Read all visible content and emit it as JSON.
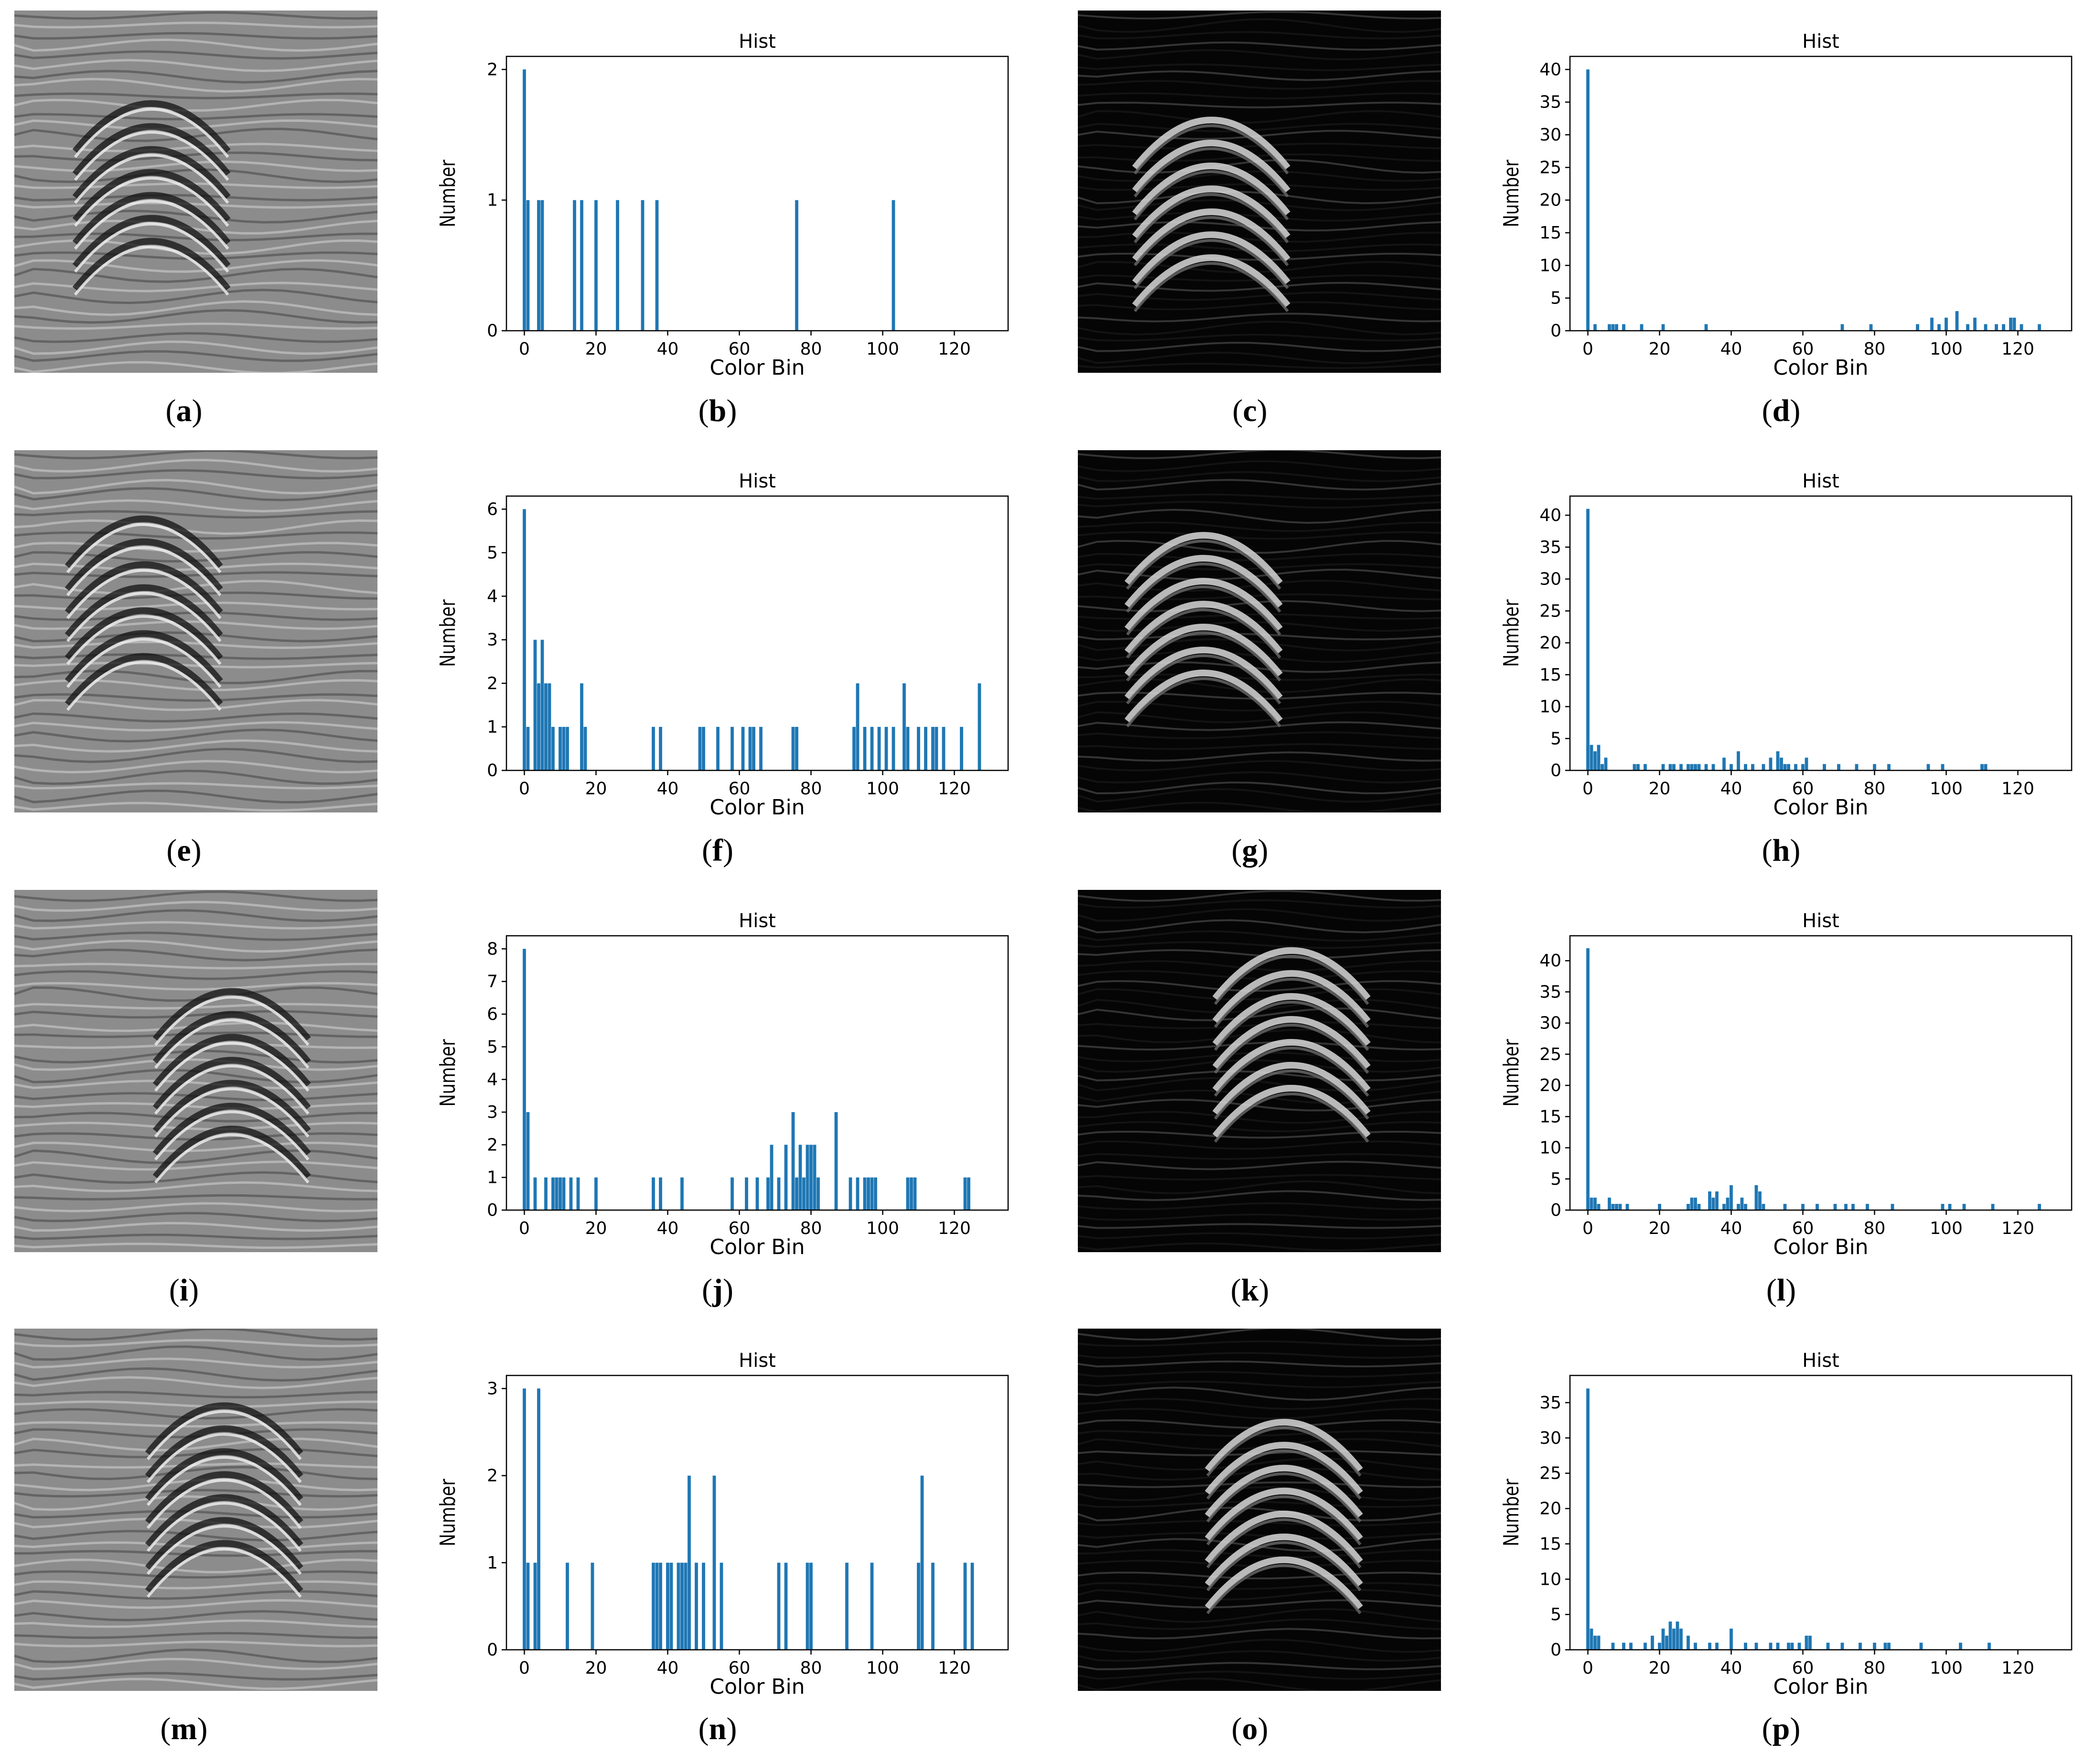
{
  "colors": {
    "bar": "#1f77b4",
    "axis": "#000000",
    "text": "#000000"
  },
  "hist_title": "Hist",
  "xlabel": "Color Bin",
  "ylabel": "Number",
  "xticks": [
    "0",
    "20",
    "40",
    "60",
    "80",
    "100",
    "120"
  ],
  "captions": {
    "a": [
      "(",
      "a",
      ")"
    ],
    "b": [
      "(",
      "b",
      ")"
    ],
    "c": [
      "(",
      "c",
      ")"
    ],
    "d": [
      "(",
      "d",
      ")"
    ],
    "e": [
      "(",
      "e",
      ")"
    ],
    "f": [
      "(",
      "f",
      ")"
    ],
    "g": [
      "(",
      "g",
      ")"
    ],
    "h": [
      "(",
      "h",
      ")"
    ],
    "i": [
      "(",
      "i",
      ")"
    ],
    "j": [
      "(",
      "j",
      ")"
    ],
    "k": [
      "(",
      "k",
      ")"
    ],
    "l": [
      "(",
      "l",
      ")"
    ],
    "m": [
      "(",
      "m",
      ")"
    ],
    "n": [
      "(",
      "n",
      ")"
    ],
    "o": [
      "(",
      "o",
      ")"
    ],
    "p": [
      "(",
      "p",
      ")"
    ]
  },
  "images": [
    {
      "id": "a",
      "kind": "gray"
    },
    {
      "id": "c",
      "kind": "dark"
    },
    {
      "id": "e",
      "kind": "gray"
    },
    {
      "id": "g",
      "kind": "dark"
    },
    {
      "id": "i",
      "kind": "gray"
    },
    {
      "id": "k",
      "kind": "dark"
    },
    {
      "id": "m",
      "kind": "gray"
    },
    {
      "id": "o",
      "kind": "dark"
    }
  ],
  "chart_data": [
    {
      "id": "b",
      "type": "bar",
      "title": "Hist",
      "xlabel": "Color Bin",
      "ylabel": "Number",
      "xlim": [
        -5,
        135
      ],
      "ylim": [
        0,
        2.1
      ],
      "yticks": [
        0,
        1,
        2
      ],
      "x": [
        0,
        1,
        4,
        5,
        14,
        16,
        20,
        26,
        33,
        37,
        76,
        103
      ],
      "values": [
        2,
        1,
        1,
        1,
        1,
        1,
        1,
        1,
        1,
        1,
        1,
        1
      ]
    },
    {
      "id": "d",
      "type": "bar",
      "title": "Hist",
      "xlabel": "Color Bin",
      "ylabel": "Number",
      "xlim": [
        -5,
        135
      ],
      "ylim": [
        0,
        42
      ],
      "yticks": [
        0,
        5,
        10,
        15,
        20,
        25,
        30,
        35,
        40
      ],
      "x": [
        0,
        2,
        6,
        7,
        8,
        10,
        15,
        21,
        33,
        71,
        79,
        92,
        96,
        98,
        100,
        103,
        106,
        108,
        111,
        114,
        116,
        118,
        119,
        121,
        126
      ],
      "values": [
        40,
        1,
        1,
        1,
        1,
        1,
        1,
        1,
        1,
        1,
        1,
        1,
        2,
        1,
        2,
        3,
        1,
        2,
        1,
        1,
        1,
        2,
        2,
        1,
        1
      ]
    },
    {
      "id": "f",
      "type": "bar",
      "title": "Hist",
      "xlabel": "Color Bin",
      "ylabel": "Number",
      "xlim": [
        -5,
        135
      ],
      "ylim": [
        0,
        6.3
      ],
      "yticks": [
        0,
        1,
        2,
        3,
        4,
        5,
        6
      ],
      "x": [
        0,
        1,
        3,
        4,
        5,
        6,
        7,
        8,
        10,
        11,
        12,
        16,
        17,
        36,
        38,
        49,
        50,
        54,
        58,
        61,
        63,
        64,
        66,
        75,
        76,
        92,
        93,
        95,
        97,
        99,
        101,
        103,
        106,
        107,
        110,
        112,
        114,
        115,
        117,
        122,
        127
      ],
      "values": [
        6,
        1,
        3,
        2,
        3,
        2,
        2,
        1,
        1,
        1,
        1,
        2,
        1,
        1,
        1,
        1,
        1,
        1,
        1,
        1,
        1,
        1,
        1,
        1,
        1,
        1,
        2,
        1,
        1,
        1,
        1,
        1,
        2,
        1,
        1,
        1,
        1,
        1,
        1,
        1,
        2
      ]
    },
    {
      "id": "h",
      "type": "bar",
      "title": "Hist",
      "xlabel": "Color Bin",
      "ylabel": "Number",
      "xlim": [
        -5,
        135
      ],
      "ylim": [
        0,
        43
      ],
      "yticks": [
        0,
        5,
        10,
        15,
        20,
        25,
        30,
        35,
        40
      ],
      "x": [
        0,
        1,
        2,
        3,
        4,
        5,
        13,
        14,
        16,
        21,
        23,
        24,
        26,
        28,
        29,
        30,
        31,
        33,
        35,
        38,
        40,
        42,
        44,
        46,
        49,
        51,
        53,
        54,
        55,
        56,
        58,
        60,
        61,
        66,
        70,
        75,
        80,
        84,
        95,
        99,
        110,
        111
      ],
      "values": [
        41,
        4,
        3,
        4,
        1,
        2,
        1,
        1,
        1,
        1,
        1,
        1,
        1,
        1,
        1,
        1,
        1,
        1,
        1,
        2,
        1,
        3,
        1,
        1,
        1,
        2,
        3,
        2,
        1,
        1,
        1,
        1,
        2,
        1,
        1,
        1,
        1,
        1,
        1,
        1,
        1,
        1
      ]
    },
    {
      "id": "j",
      "type": "bar",
      "title": "Hist",
      "xlabel": "Color Bin",
      "ylabel": "Number",
      "xlim": [
        -5,
        135
      ],
      "ylim": [
        0,
        8.4
      ],
      "yticks": [
        0,
        1,
        2,
        3,
        4,
        5,
        6,
        7,
        8
      ],
      "x": [
        0,
        1,
        3,
        6,
        8,
        9,
        10,
        11,
        13,
        15,
        20,
        36,
        38,
        44,
        58,
        62,
        65,
        68,
        69,
        71,
        73,
        75,
        76,
        77,
        78,
        79,
        80,
        81,
        82,
        87,
        91,
        93,
        95,
        96,
        97,
        98,
        107,
        108,
        109,
        123,
        124
      ],
      "values": [
        8,
        3,
        1,
        1,
        1,
        1,
        1,
        1,
        1,
        1,
        1,
        1,
        1,
        1,
        1,
        1,
        1,
        1,
        2,
        1,
        2,
        3,
        1,
        2,
        1,
        2,
        2,
        2,
        1,
        3,
        1,
        1,
        1,
        1,
        1,
        1,
        1,
        1,
        1,
        1,
        1
      ]
    },
    {
      "id": "l",
      "type": "bar",
      "title": "Hist",
      "xlabel": "Color Bin",
      "ylabel": "Number",
      "xlim": [
        -5,
        135
      ],
      "ylim": [
        0,
        44
      ],
      "yticks": [
        0,
        5,
        10,
        15,
        20,
        25,
        30,
        35,
        40
      ],
      "x": [
        0,
        1,
        2,
        3,
        6,
        7,
        8,
        9,
        11,
        20,
        28,
        29,
        30,
        31,
        34,
        35,
        36,
        38,
        39,
        40,
        42,
        43,
        44,
        47,
        48,
        49,
        55,
        60,
        64,
        69,
        72,
        74,
        78,
        85,
        99,
        101,
        105,
        113,
        126
      ],
      "values": [
        42,
        2,
        2,
        1,
        2,
        1,
        1,
        1,
        1,
        1,
        1,
        2,
        2,
        1,
        3,
        2,
        3,
        1,
        2,
        4,
        1,
        2,
        1,
        4,
        3,
        1,
        1,
        1,
        1,
        1,
        1,
        1,
        1,
        1,
        1,
        1,
        1,
        1,
        1
      ]
    },
    {
      "id": "n",
      "type": "bar",
      "title": "Hist",
      "xlabel": "Color Bin",
      "ylabel": "Number",
      "xlim": [
        -5,
        135
      ],
      "ylim": [
        0,
        3.15
      ],
      "yticks": [
        0,
        1,
        2,
        3
      ],
      "x": [
        0,
        1,
        3,
        4,
        12,
        19,
        36,
        37,
        38,
        40,
        41,
        43,
        44,
        45,
        46,
        48,
        50,
        53,
        55,
        71,
        73,
        79,
        80,
        90,
        97,
        110,
        111,
        114,
        123,
        125
      ],
      "values": [
        3,
        1,
        1,
        3,
        1,
        1,
        1,
        1,
        1,
        1,
        1,
        1,
        1,
        1,
        2,
        1,
        1,
        2,
        1,
        1,
        1,
        1,
        1,
        1,
        1,
        1,
        2,
        1,
        1,
        1
      ]
    },
    {
      "id": "p",
      "type": "bar",
      "title": "Hist",
      "xlabel": "Color Bin",
      "ylabel": "Number",
      "xlim": [
        -5,
        135
      ],
      "ylim": [
        0,
        38.85
      ],
      "yticks": [
        0,
        5,
        10,
        15,
        20,
        25,
        30,
        35
      ],
      "x": [
        0,
        1,
        2,
        3,
        7,
        10,
        12,
        16,
        18,
        20,
        21,
        22,
        23,
        24,
        25,
        26,
        28,
        30,
        34,
        36,
        40,
        44,
        47,
        51,
        53,
        56,
        57,
        59,
        61,
        62,
        67,
        71,
        76,
        80,
        83,
        84,
        93,
        104,
        112
      ],
      "values": [
        37,
        3,
        2,
        2,
        1,
        1,
        1,
        1,
        2,
        1,
        3,
        2,
        4,
        3,
        4,
        3,
        2,
        1,
        1,
        1,
        3,
        1,
        1,
        1,
        1,
        1,
        1,
        1,
        2,
        2,
        1,
        1,
        1,
        1,
        1,
        1,
        1,
        1,
        1
      ]
    }
  ]
}
